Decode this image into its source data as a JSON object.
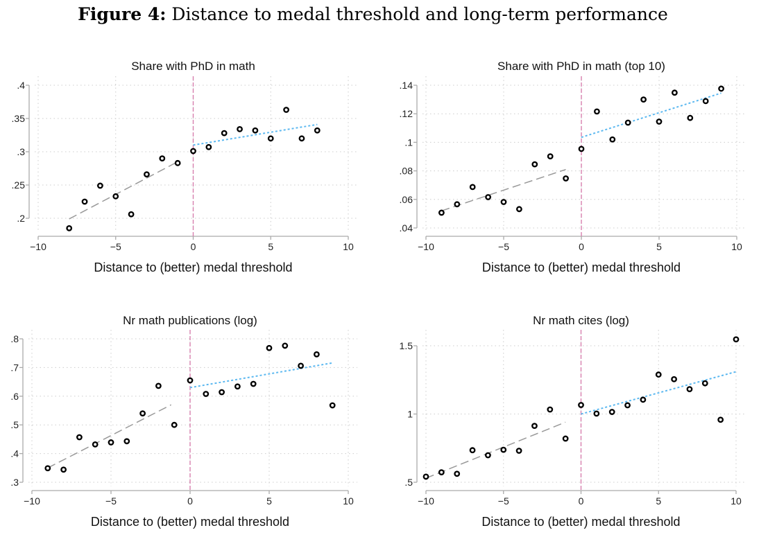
{
  "figure": {
    "label": "Figure 4:",
    "title": "Distance to medal threshold and long-term performance"
  },
  "colors": {
    "points": "#000000",
    "fit_left": "#999999",
    "fit_right": "#5bb8f0",
    "threshold": "#d77fae",
    "grid": "#cccccc",
    "axis": "#aaaaaa"
  },
  "chart_data": [
    {
      "type": "scatter",
      "title": "Share with PhD in math",
      "xlabel": "Distance to (better) medal threshold",
      "ylabel": "",
      "xlim": [
        -10,
        10
      ],
      "xticks": [
        -10,
        -5,
        0,
        5,
        10
      ],
      "xtick_labels": [
        "−10",
        "−5",
        "0",
        "5",
        "10"
      ],
      "yticks": [
        0.2,
        0.25,
        0.3,
        0.35,
        0.4
      ],
      "ytick_labels": [
        ".2",
        ".25",
        ".3",
        ".35",
        ".4"
      ],
      "grid": true,
      "threshold_x": 0,
      "x": [
        -8,
        -7,
        -6,
        -5,
        -4,
        -3,
        -2,
        -1,
        0,
        1,
        2,
        3,
        4,
        5,
        6,
        7,
        8
      ],
      "y": [
        0.185,
        0.225,
        0.249,
        0.233,
        0.206,
        0.266,
        0.29,
        0.283,
        0.301,
        0.307,
        0.328,
        0.334,
        0.332,
        0.32,
        0.363,
        0.32,
        0.332
      ],
      "fit_left": {
        "x": [
          -8,
          -1
        ],
        "y": [
          0.199,
          0.285
        ]
      },
      "fit_right": {
        "x": [
          0,
          8
        ],
        "y": [
          0.31,
          0.341
        ]
      }
    },
    {
      "type": "scatter",
      "title": "Share with PhD in math (top 10)",
      "xlabel": "Distance to (better) medal threshold",
      "ylabel": "",
      "xlim": [
        -10,
        10
      ],
      "xticks": [
        -10,
        -5,
        0,
        5,
        10
      ],
      "xtick_labels": [
        "−10",
        "−5",
        "0",
        "5",
        "10"
      ],
      "yticks": [
        0.04,
        0.06,
        0.08,
        0.1,
        0.12,
        0.14
      ],
      "ytick_labels": [
        ".04",
        ".06",
        ".08",
        ".1",
        ".12",
        ".14"
      ],
      "grid": true,
      "threshold_x": 0,
      "x": [
        -9,
        -8,
        -7,
        -6,
        -5,
        -4,
        -3,
        -2,
        -1,
        0,
        1,
        2,
        3,
        4,
        5,
        6,
        7,
        8,
        9
      ],
      "y": [
        0.0507,
        0.0566,
        0.0687,
        0.0616,
        0.0582,
        0.0532,
        0.0846,
        0.0902,
        0.0747,
        0.0954,
        0.1216,
        0.102,
        0.1138,
        0.13,
        0.1145,
        0.1348,
        0.1171,
        0.1289,
        0.1376
      ],
      "fit_left": {
        "x": [
          -9,
          -1
        ],
        "y": [
          0.052,
          0.081
        ]
      },
      "fit_right": {
        "x": [
          0,
          9
        ],
        "y": [
          0.1035,
          0.1345
        ]
      }
    },
    {
      "type": "scatter",
      "title": "Nr math publications (log)",
      "xlabel": "Distance to (better) medal threshold",
      "ylabel": "",
      "xlim": [
        -10,
        10
      ],
      "xticks": [
        -10,
        -5,
        0,
        5,
        10
      ],
      "xtick_labels": [
        "−10",
        "−5",
        "0",
        "5",
        "10"
      ],
      "yticks": [
        0.3,
        0.4,
        0.5,
        0.6,
        0.7,
        0.8
      ],
      "ytick_labels": [
        ".3",
        ".4",
        ".5",
        ".6",
        ".7",
        ".8"
      ],
      "grid": true,
      "threshold_x": 0,
      "x": [
        -9,
        -8,
        -7,
        -6,
        -5,
        -4,
        -3,
        -2,
        -1,
        0,
        1,
        2,
        3,
        4,
        5,
        6,
        7,
        8,
        9
      ],
      "y": [
        0.349,
        0.344,
        0.457,
        0.432,
        0.439,
        0.443,
        0.54,
        0.636,
        0.5,
        0.655,
        0.608,
        0.614,
        0.634,
        0.643,
        0.768,
        0.776,
        0.706,
        0.746,
        0.568
      ],
      "fit_left": {
        "x": [
          -9,
          -1.2
        ],
        "y": [
          0.35,
          0.57
        ]
      },
      "fit_right": {
        "x": [
          0,
          9
        ],
        "y": [
          0.63,
          0.716
        ]
      }
    },
    {
      "type": "scatter",
      "title": "Nr math cites (log)",
      "xlabel": "Distance to (better) medal threshold",
      "ylabel": "",
      "xlim": [
        -10,
        10
      ],
      "xticks": [
        -10,
        -5,
        0,
        5,
        10
      ],
      "xtick_labels": [
        "−10",
        "−5",
        "0",
        "5",
        "10"
      ],
      "yticks": [
        0.5,
        1,
        1.5
      ],
      "ytick_labels": [
        ".5",
        "1",
        "1.5"
      ],
      "grid": true,
      "threshold_x": 0,
      "x": [
        -10,
        -9,
        -8,
        -7,
        -6,
        -5,
        -4,
        -3,
        -2,
        -1,
        0,
        1,
        2,
        3,
        4,
        5,
        6,
        7,
        8,
        9,
        10
      ],
      "y": [
        0.541,
        0.573,
        0.562,
        0.735,
        0.698,
        0.738,
        0.731,
        0.913,
        1.033,
        0.82,
        1.066,
        1.003,
        1.015,
        1.064,
        1.105,
        1.289,
        1.255,
        1.182,
        1.225,
        0.958,
        1.547
      ],
      "fit_left": {
        "x": [
          -10,
          -1
        ],
        "y": [
          0.53,
          0.94
        ]
      },
      "fit_right": {
        "x": [
          0,
          10
        ],
        "y": [
          1.0,
          1.31
        ]
      }
    }
  ]
}
